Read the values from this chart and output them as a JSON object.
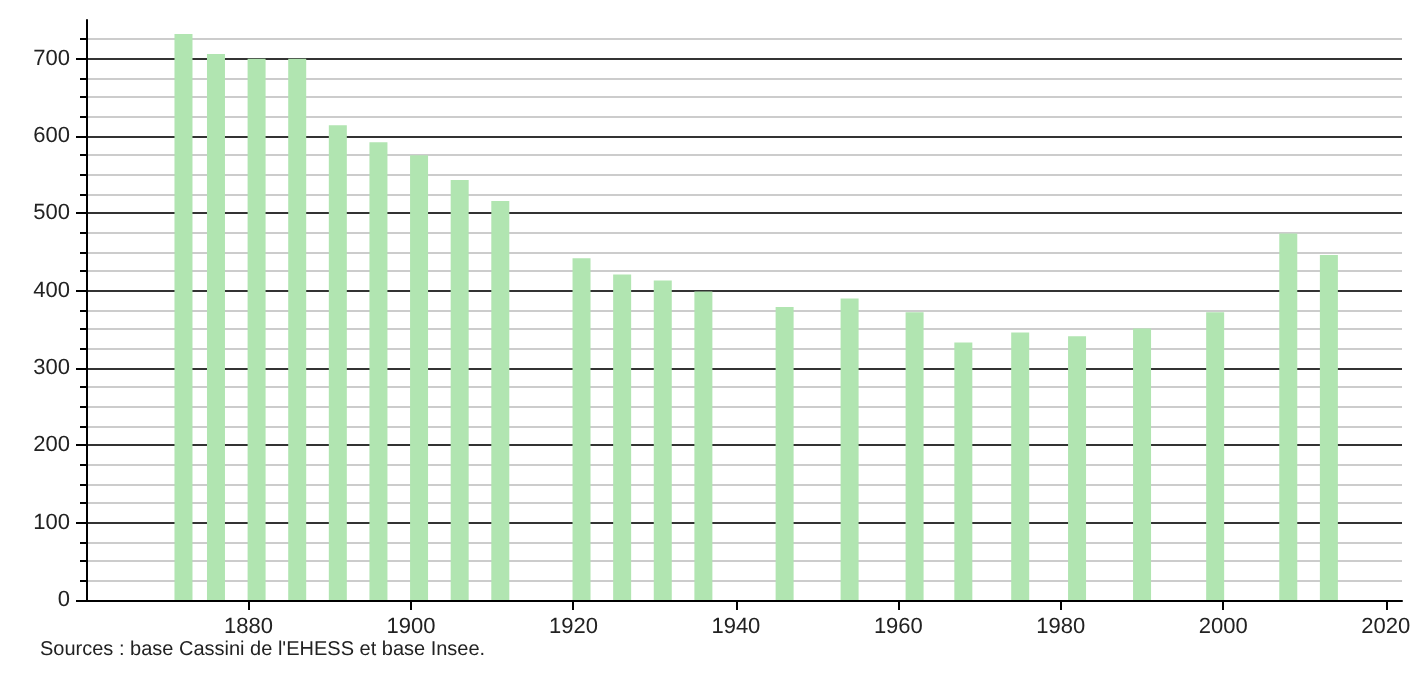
{
  "chart_data": {
    "type": "bar",
    "x": [
      1872,
      1876,
      1881,
      1886,
      1891,
      1896,
      1901,
      1906,
      1911,
      1921,
      1926,
      1931,
      1936,
      1946,
      1954,
      1962,
      1968,
      1975,
      1982,
      1990,
      1999,
      2008,
      2013
    ],
    "values": [
      732,
      706,
      700,
      700,
      614,
      592,
      575,
      543,
      516,
      442,
      421,
      413,
      399,
      379,
      390,
      372,
      333,
      346,
      341,
      351,
      372,
      474,
      446
    ],
    "color": "#b1e5b1",
    "xlim": [
      1860,
      2022
    ],
    "xticks": [
      1880,
      1900,
      1920,
      1940,
      1960,
      1980,
      2000,
      2020
    ],
    "ylim": [
      0,
      750
    ],
    "yticks": [
      0,
      100,
      200,
      300,
      400,
      500,
      600,
      700
    ],
    "grid": "y",
    "annotations": [
      "Sources : base Cassini de l'EHESS et base Insee."
    ]
  }
}
